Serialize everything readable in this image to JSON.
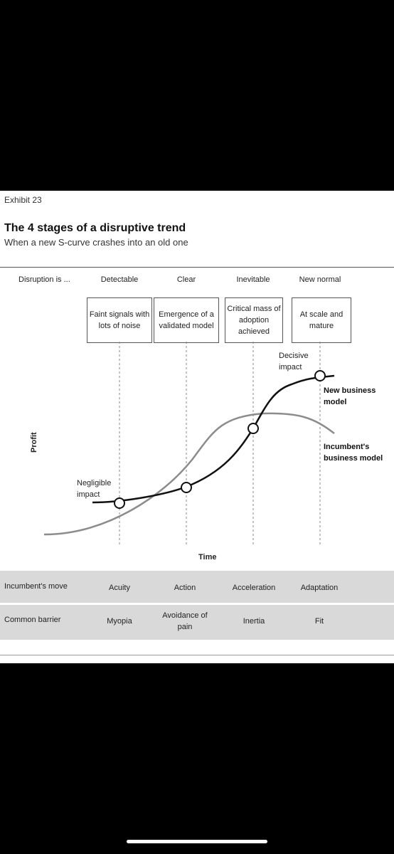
{
  "exhibit_label": "Exhibit 23",
  "title": "The 4 stages of a disruptive trend",
  "subtitle": "When a new S-curve crashes into an old one",
  "disruption_label": "Disruption is ...",
  "stages": [
    {
      "name": "Detectable",
      "box": "Faint signals with lots of noise"
    },
    {
      "name": "Clear",
      "box": "Emergence of a validated model"
    },
    {
      "name": "Inevitable",
      "box": "Critical mass of adoption achieved"
    },
    {
      "name": "New normal",
      "box": "At scale and mature"
    }
  ],
  "annotations": {
    "negligible": "Negligible impact",
    "decisive": "Decisive impact",
    "new_model": "New business model",
    "incumbent_model": "Incumbent's business model"
  },
  "axes": {
    "y": "Profit",
    "x": "Time"
  },
  "table": {
    "rows": [
      {
        "label": "Incumbent's move",
        "cells": [
          "Acuity",
          "Action",
          "Acceleration",
          "Adaptation"
        ]
      },
      {
        "label": "Common barrier",
        "cells": [
          "Myopia",
          "Avoidance of pain",
          "Inertia",
          "Fit"
        ]
      }
    ]
  },
  "colors": {
    "new_curve": "#111111",
    "incumbent_curve": "#8c8c8c",
    "table_band": "#d9d9d9"
  }
}
